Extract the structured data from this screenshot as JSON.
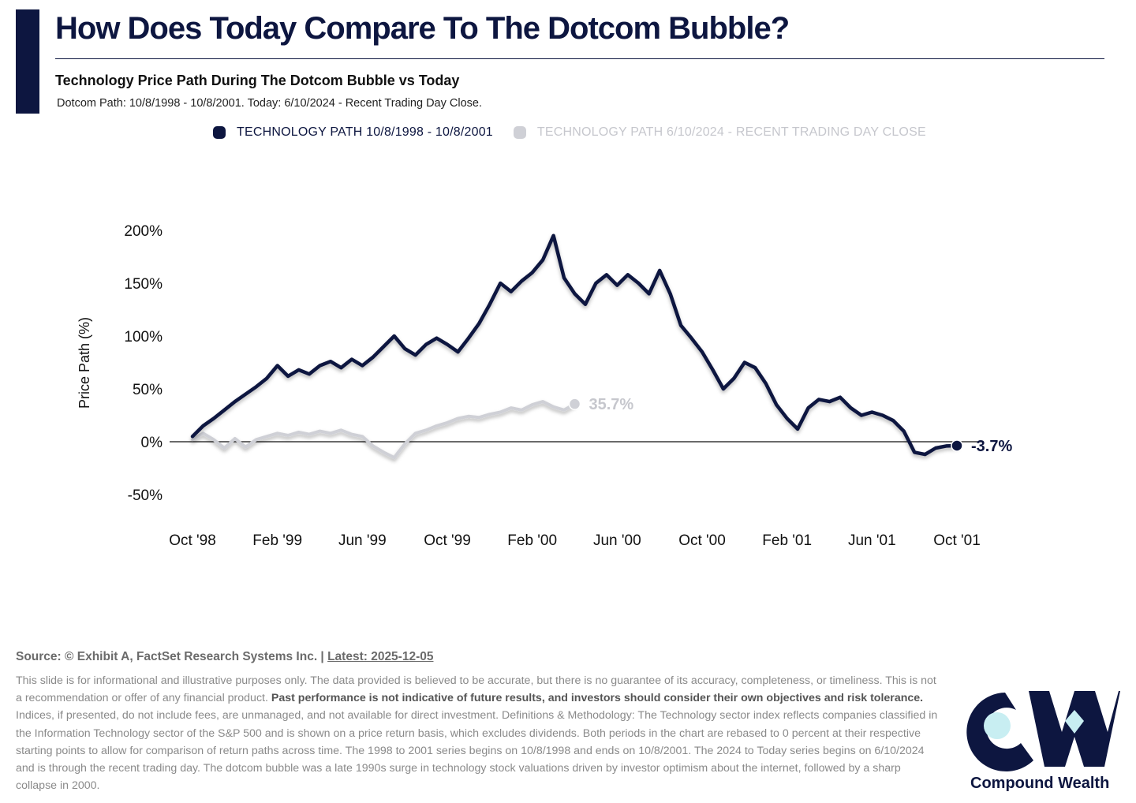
{
  "header": {
    "title": "How Does Today Compare To The Dotcom Bubble?",
    "subtitle": "Technology Price Path During The Dotcom Bubble vs Today",
    "caption": "Dotcom Path: 10/8/1998 - 10/8/2001. Today: 6/10/2024 - Recent Trading Day Close."
  },
  "legend": {
    "items": [
      {
        "label": "TECHNOLOGY PATH 10/8/1998 - 10/8/2001",
        "color": "#0d1640"
      },
      {
        "label": "TECHNOLOGY PATH 6/10/2024 - RECENT TRADING DAY CLOSE",
        "color": "#cfd0d6"
      }
    ]
  },
  "chart_data": {
    "type": "line",
    "title": "Technology Price Path During The Dotcom Bubble vs Today",
    "xlabel": "",
    "ylabel": "Price Path (%)",
    "ylim": [
      -50,
      200
    ],
    "yticks": [
      200,
      150,
      100,
      50,
      0,
      -50
    ],
    "ytick_labels": [
      "200%",
      "150%",
      "100%",
      "50%",
      "0%",
      "-50%"
    ],
    "xticks": [
      0,
      4,
      8,
      12,
      16,
      20,
      24,
      28,
      32,
      36
    ],
    "xtick_labels": [
      "Oct '98",
      "Feb '99",
      "Jun '99",
      "Oct '99",
      "Feb '00",
      "Jun '00",
      "Oct '00",
      "Feb '01",
      "Jun '01",
      "Oct '01"
    ],
    "grid": false,
    "legend_position": "top-center",
    "series": [
      {
        "name": "TECHNOLOGY PATH 10/8/1998 - 10/8/2001",
        "color": "#0d1640",
        "end_label": "-3.7%",
        "x": [
          0,
          0.5,
          1,
          1.5,
          2,
          2.5,
          3,
          3.5,
          4,
          4.5,
          5,
          5.5,
          6,
          6.5,
          7,
          7.5,
          8,
          8.5,
          9,
          9.5,
          10,
          10.5,
          11,
          11.5,
          12,
          12.5,
          13,
          13.5,
          14,
          14.5,
          15,
          15.5,
          16,
          16.5,
          17,
          17.5,
          18,
          18.5,
          19,
          19.5,
          20,
          20.5,
          21,
          21.5,
          22,
          22.5,
          23,
          23.5,
          24,
          24.5,
          25,
          25.5,
          26,
          26.5,
          27,
          27.5,
          28,
          28.5,
          29,
          29.5,
          30,
          30.5,
          31,
          31.5,
          32,
          32.5,
          33,
          33.5,
          34,
          34.5,
          35,
          35.5,
          36
        ],
        "y": [
          5,
          15,
          22,
          30,
          38,
          45,
          52,
          60,
          72,
          62,
          68,
          64,
          72,
          76,
          70,
          78,
          72,
          80,
          90,
          100,
          88,
          82,
          92,
          98,
          92,
          85,
          98,
          112,
          130,
          150,
          142,
          152,
          160,
          172,
          195,
          155,
          140,
          130,
          150,
          158,
          148,
          158,
          150,
          140,
          162,
          140,
          110,
          98,
          85,
          68,
          50,
          60,
          75,
          70,
          55,
          35,
          22,
          12,
          32,
          40,
          38,
          42,
          32,
          25,
          28,
          25,
          20,
          10,
          -10,
          -12,
          -6,
          -4,
          -3.7
        ]
      },
      {
        "name": "TECHNOLOGY PATH 6/10/2024 - RECENT TRADING DAY CLOSE",
        "color": "#cfd0d6",
        "end_label": "35.7%",
        "x": [
          0,
          0.5,
          1,
          1.5,
          2,
          2.5,
          3,
          3.5,
          4,
          4.5,
          5,
          5.5,
          6,
          6.5,
          7,
          7.5,
          8,
          8.5,
          9,
          9.5,
          10,
          10.5,
          11,
          11.5,
          12,
          12.5,
          13,
          13.5,
          14,
          14.5,
          15,
          15.5,
          16,
          16.5,
          17,
          17.5,
          18
        ],
        "y": [
          2,
          8,
          2,
          -6,
          3,
          -5,
          2,
          5,
          8,
          6,
          9,
          7,
          10,
          8,
          11,
          7,
          5,
          -4,
          -10,
          -15,
          -2,
          8,
          11,
          15,
          18,
          22,
          24,
          23,
          26,
          28,
          32,
          30,
          35,
          38,
          33,
          30,
          35.7
        ]
      }
    ]
  },
  "footer": {
    "source_prefix": "Source: © Exhibit A, FactSet Research Systems Inc. | ",
    "source_link": "Latest: 2025-12-05",
    "disclaimer_1": "This slide is for informational and illustrative purposes only. The data provided is believed to be accurate, but there is no guarantee of its accuracy, completeness, or timeliness. This is not a recommendation or offer of any financial product. ",
    "disclaimer_bold": "Past performance is not indicative of future results, and investors should consider their own objectives and risk tolerance.",
    "disclaimer_2": " Indices, if presented, do not include fees, are unmanaged, and not available for direct investment. Definitions & Methodology: The Technology sector index reflects companies classified in the Information Technology sector of the S&P 500 and is shown on a price return basis, which excludes dividends. Both periods in the chart are rebased to 0 percent at their respective starting points to allow for comparison of return paths across time. The 1998 to 2001 series begins on 10/8/1998 and ends on 10/8/2001. The 2024 to Today series begins on 6/10/2024 and is through the recent trading day. The dotcom bubble was a late 1990s surge in technology stock valuations driven by investor optimism about the internet, followed by a sharp collapse in 2000."
  },
  "logo": {
    "name": "Compound Wealth",
    "primary_color": "#0d1640",
    "accent_color": "#c8eef2"
  }
}
